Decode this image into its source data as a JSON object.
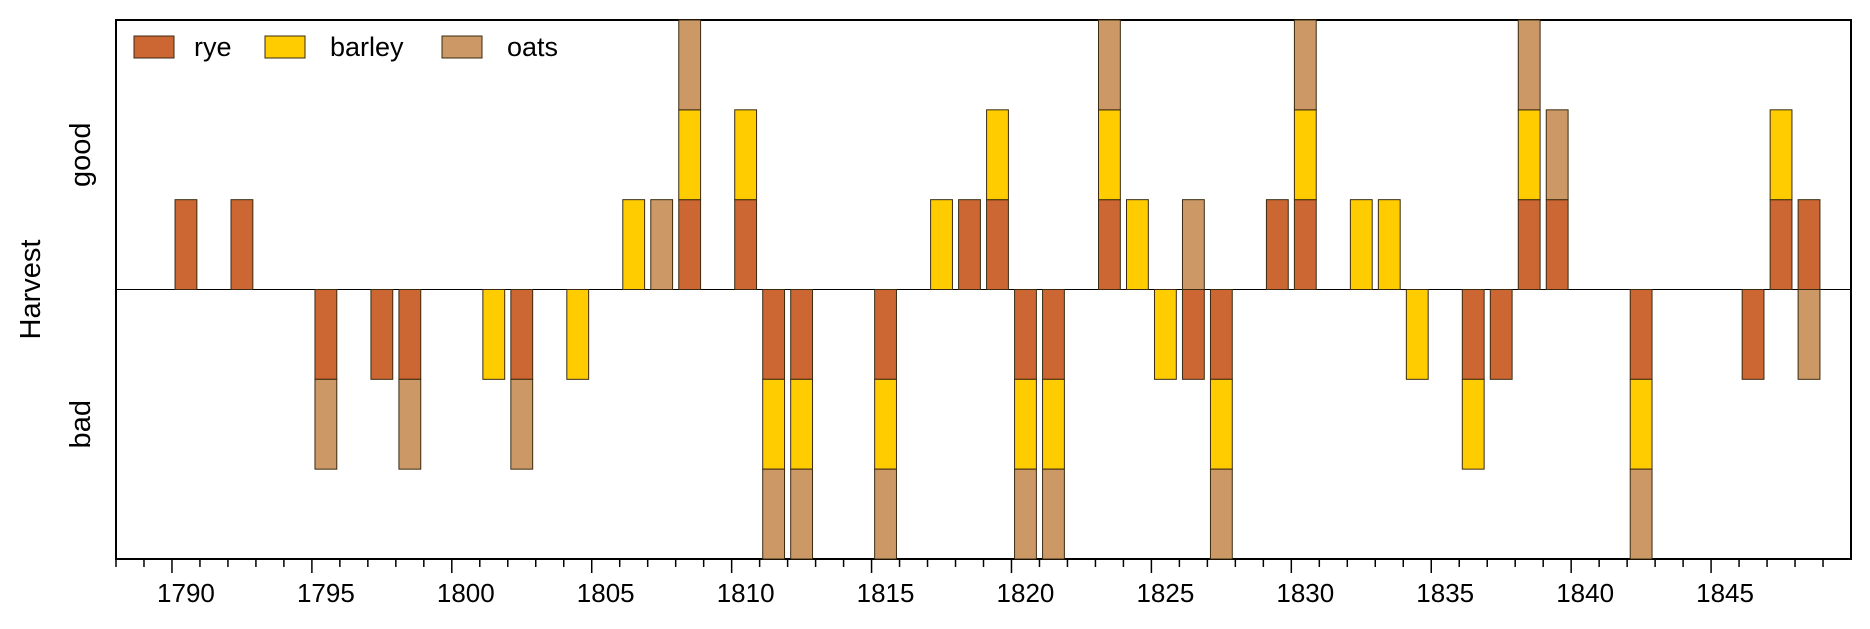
{
  "chart_data": {
    "type": "bar",
    "title": "",
    "xlabel": "",
    "ylabel": "Harvest",
    "y_category_labels": {
      "good": "good",
      "bad": "bad"
    },
    "xlim": [
      1787.5,
      1849.5
    ],
    "ylim": [
      -3,
      3
    ],
    "x_ticks": [
      1790,
      1795,
      1800,
      1805,
      1810,
      1815,
      1820,
      1825,
      1830,
      1835,
      1840,
      1845
    ],
    "x_tick_labels": [
      "1790",
      "1795",
      "1800",
      "1805",
      "1810",
      "1815",
      "1820",
      "1825",
      "1830",
      "1835",
      "1840",
      "1845"
    ],
    "grid": false,
    "legend_position": "top-left",
    "stack_order": [
      "rye",
      "barley",
      "oats"
    ],
    "series": [
      {
        "name": "rye",
        "color": "#cc6633"
      },
      {
        "name": "barley",
        "color": "#ffcc00"
      },
      {
        "name": "oats",
        "color": "#cc9966"
      }
    ],
    "years": [
      {
        "year": 1790,
        "rye": 1,
        "barley": 0,
        "oats": 0
      },
      {
        "year": 1792,
        "rye": 1,
        "barley": 0,
        "oats": 0
      },
      {
        "year": 1795,
        "rye": -1,
        "barley": 0,
        "oats": -1
      },
      {
        "year": 1797,
        "rye": -1,
        "barley": 0,
        "oats": 0
      },
      {
        "year": 1798,
        "rye": -1,
        "barley": 0,
        "oats": -1
      },
      {
        "year": 1801,
        "rye": 0,
        "barley": -1,
        "oats": 0
      },
      {
        "year": 1802,
        "rye": -1,
        "barley": 0,
        "oats": -1
      },
      {
        "year": 1804,
        "rye": 0,
        "barley": -1,
        "oats": 0
      },
      {
        "year": 1806,
        "rye": 0,
        "barley": 1,
        "oats": 0
      },
      {
        "year": 1807,
        "rye": 0,
        "barley": 0,
        "oats": 1
      },
      {
        "year": 1808,
        "rye": 1,
        "barley": 1,
        "oats": 1
      },
      {
        "year": 1810,
        "rye": 1,
        "barley": 1,
        "oats": 0
      },
      {
        "year": 1811,
        "rye": -1,
        "barley": -1,
        "oats": -1
      },
      {
        "year": 1812,
        "rye": -1,
        "barley": -1,
        "oats": -1
      },
      {
        "year": 1815,
        "rye": -1,
        "barley": -1,
        "oats": -1
      },
      {
        "year": 1817,
        "rye": 0,
        "barley": 1,
        "oats": 0
      },
      {
        "year": 1818,
        "rye": 1,
        "barley": 0,
        "oats": 0
      },
      {
        "year": 1819,
        "rye": 1,
        "barley": 1,
        "oats": 0
      },
      {
        "year": 1820,
        "rye": -1,
        "barley": -1,
        "oats": -1
      },
      {
        "year": 1821,
        "rye": -1,
        "barley": -1,
        "oats": -1
      },
      {
        "year": 1823,
        "rye": 1,
        "barley": 1,
        "oats": 1
      },
      {
        "year": 1824,
        "rye": 0,
        "barley": 1,
        "oats": 0
      },
      {
        "year": 1825,
        "rye": 0,
        "barley": -1,
        "oats": 0
      },
      {
        "year": 1826,
        "rye": -1,
        "barley": 0,
        "oats": 1
      },
      {
        "year": 1827,
        "rye": -1,
        "barley": -1,
        "oats": -1
      },
      {
        "year": 1829,
        "rye": 1,
        "barley": 0,
        "oats": 0
      },
      {
        "year": 1830,
        "rye": 1,
        "barley": 1,
        "oats": 1
      },
      {
        "year": 1832,
        "rye": 0,
        "barley": 1,
        "oats": 0
      },
      {
        "year": 1833,
        "rye": 0,
        "barley": 1,
        "oats": 0
      },
      {
        "year": 1834,
        "rye": 0,
        "barley": -1,
        "oats": 0
      },
      {
        "year": 1836,
        "rye": -1,
        "barley": -1,
        "oats": 0
      },
      {
        "year": 1837,
        "rye": -1,
        "barley": 0,
        "oats": 0
      },
      {
        "year": 1838,
        "rye": 1,
        "barley": 1,
        "oats": 1
      },
      {
        "year": 1839,
        "rye": 1,
        "barley": 0,
        "oats": 1
      },
      {
        "year": 1842,
        "rye": -1,
        "barley": -1,
        "oats": -1
      },
      {
        "year": 1846,
        "rye": -1,
        "barley": 0,
        "oats": 0
      },
      {
        "year": 1847,
        "rye": 1,
        "barley": 1,
        "oats": 0
      },
      {
        "year": 1848,
        "rye": 1,
        "barley": 0,
        "oats": -1
      }
    ]
  }
}
